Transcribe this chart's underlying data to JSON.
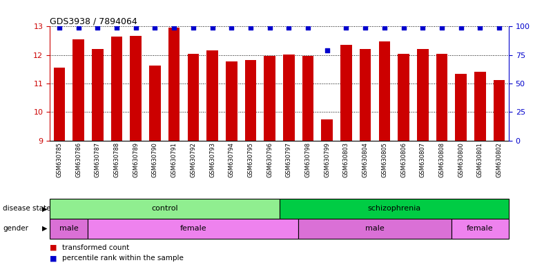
{
  "title": "GDS3938 / 7894064",
  "samples": [
    "GSM630785",
    "GSM630786",
    "GSM630787",
    "GSM630788",
    "GSM630789",
    "GSM630790",
    "GSM630791",
    "GSM630792",
    "GSM630793",
    "GSM630794",
    "GSM630795",
    "GSM630796",
    "GSM630797",
    "GSM630798",
    "GSM630799",
    "GSM630803",
    "GSM630804",
    "GSM630805",
    "GSM630806",
    "GSM630807",
    "GSM630808",
    "GSM630800",
    "GSM630801",
    "GSM630802"
  ],
  "bar_values": [
    11.55,
    12.55,
    12.22,
    12.65,
    12.68,
    11.62,
    12.95,
    12.03,
    12.15,
    11.78,
    11.82,
    11.98,
    12.02,
    11.98,
    9.75,
    12.35,
    12.22,
    12.48,
    12.05,
    12.2,
    12.03,
    11.35,
    11.4,
    11.12
  ],
  "percentile_values": [
    99,
    99,
    99,
    99,
    99,
    99,
    99,
    99,
    99,
    99,
    99,
    99,
    99,
    99,
    79,
    99,
    99,
    99,
    99,
    99,
    99,
    99,
    99,
    99
  ],
  "bar_color": "#cc0000",
  "dot_color": "#0000cc",
  "ymin": 9,
  "ymax": 13,
  "yticks": [
    9,
    10,
    11,
    12,
    13
  ],
  "y2min": 0,
  "y2max": 100,
  "y2ticks": [
    0,
    25,
    50,
    75,
    100
  ],
  "control_range": [
    0,
    12
  ],
  "schiz_range": [
    12,
    24
  ],
  "disease_colors": {
    "control": "#90EE90",
    "schizophrenia": "#00CC44"
  },
  "gender_groups": [
    {
      "label": "male",
      "start": 0,
      "end": 2,
      "color": "#DA70D6"
    },
    {
      "label": "female",
      "start": 2,
      "end": 13,
      "color": "#EE82EE"
    },
    {
      "label": "male",
      "start": 13,
      "end": 21,
      "color": "#DA70D6"
    },
    {
      "label": "female",
      "start": 21,
      "end": 24,
      "color": "#EE82EE"
    }
  ]
}
